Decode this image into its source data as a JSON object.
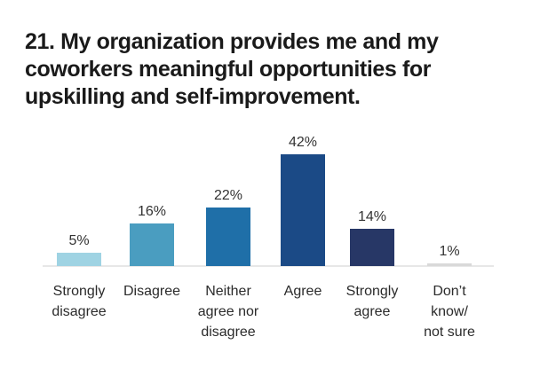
{
  "chart_data": {
    "type": "bar",
    "title": "21. My organization provides me and my coworkers meaningful opportunities for upskilling and self-improvement.",
    "categories": [
      [
        "Strongly",
        "disagree"
      ],
      [
        "Disagree"
      ],
      [
        "Neither",
        "agree nor",
        "disagree"
      ],
      [
        "Agree"
      ],
      [
        "Strongly",
        "agree"
      ],
      [
        "Don’t",
        "know/",
        "not sure"
      ]
    ],
    "values": [
      5,
      16,
      22,
      42,
      14,
      1
    ],
    "value_labels": [
      "5%",
      "16%",
      "22%",
      "42%",
      "14%",
      "1%"
    ],
    "colors": [
      "#9fd3e3",
      "#4a9dc0",
      "#1f6fa8",
      "#1b4a86",
      "#273766",
      "#d9d9d9"
    ],
    "xlabel": "",
    "ylabel": "",
    "ylim": [
      0,
      42
    ],
    "grid": false,
    "baseline": true
  }
}
